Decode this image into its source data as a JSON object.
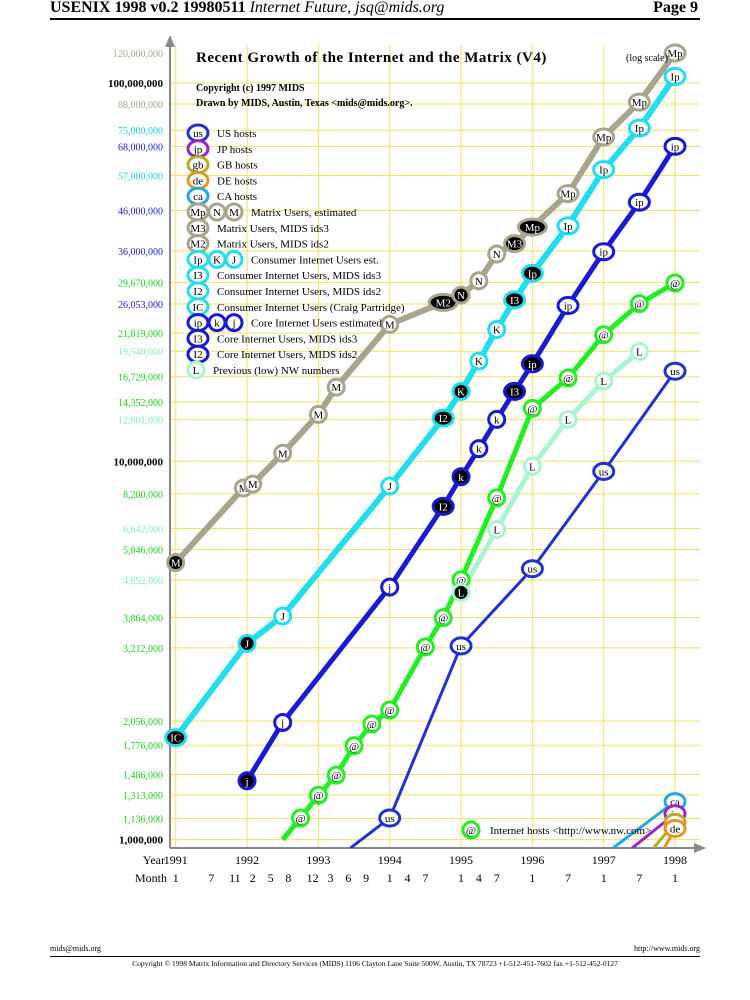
{
  "header": {
    "left_bold": "USENIX 1998 v0.2 19980511",
    "left_italic": "Internet Future, jsq@mids.org",
    "right": "Page 9"
  },
  "footer": {
    "left": "mids@mids.org",
    "right": "http://www.mids.org",
    "copyright": "Copyright © 1998 Matrix Information and Directory Services (MIDS) 1106 Clayton Lane Suite 500W, Austin, TX 78723 +1-512-451-7602 fax +1-512-452-0127"
  },
  "colors": {
    "matrix": "#a8a58c",
    "ip": "#22ddee",
    "core": "#1a1ad2",
    "hosts": "#22ee22",
    "us": "#2233cc",
    "low": "#a8f5d0",
    "jp": "#9922cc",
    "gb": "#bbaa22",
    "de": "#dd9922",
    "ca": "#22aadd",
    "grid": "#f2e060",
    "axis": "#888888"
  },
  "chart_data": {
    "type": "line",
    "title": "Recent Growth of the Internet and the Matrix (V4)",
    "title_suffix": "(log scale)",
    "subtitle1": "Copyright (c) 1997 MIDS",
    "subtitle2": "Drawn by MIDS, Austin, Texas <mids@mids.org>.",
    "yscale": "log",
    "ylim": [
      950000,
      126000000
    ],
    "xlim": [
      1990.92,
      1998.35
    ],
    "xlabel_year": "Year",
    "xlabel_month": "Month",
    "year_ticks": [
      {
        "x": 1991,
        "label": "1991"
      },
      {
        "x": 1992,
        "label": "1992"
      },
      {
        "x": 1993,
        "label": "1993"
      },
      {
        "x": 1994,
        "label": "1994"
      },
      {
        "x": 1995,
        "label": "1995"
      },
      {
        "x": 1996,
        "label": "1996"
      },
      {
        "x": 1997,
        "label": "1997"
      },
      {
        "x": 1998,
        "label": "1998"
      }
    ],
    "month_ticks": [
      {
        "x": 1991.0,
        "label": "1"
      },
      {
        "x": 1991.5,
        "label": "7"
      },
      {
        "x": 1991.83,
        "label": "11"
      },
      {
        "x": 1992.08,
        "label": "2"
      },
      {
        "x": 1992.33,
        "label": "5"
      },
      {
        "x": 1992.58,
        "label": "8"
      },
      {
        "x": 1992.92,
        "label": "12"
      },
      {
        "x": 1993.17,
        "label": "3"
      },
      {
        "x": 1993.42,
        "label": "6"
      },
      {
        "x": 1993.67,
        "label": "9"
      },
      {
        "x": 1994.0,
        "label": "1"
      },
      {
        "x": 1994.25,
        "label": "4"
      },
      {
        "x": 1994.5,
        "label": "7"
      },
      {
        "x": 1995.0,
        "label": "1"
      },
      {
        "x": 1995.25,
        "label": "4"
      },
      {
        "x": 1995.5,
        "label": "7"
      },
      {
        "x": 1996.0,
        "label": "1"
      },
      {
        "x": 1996.5,
        "label": "7"
      },
      {
        "x": 1997.0,
        "label": "1"
      },
      {
        "x": 1997.5,
        "label": "7"
      },
      {
        "x": 1998.0,
        "label": "1"
      }
    ],
    "y_ticks": [
      {
        "v": 120000000,
        "label": "120,000,000",
        "color": "#a8a58c",
        "bold": false,
        "line": false
      },
      {
        "v": 100000000,
        "label": "100,000,000",
        "color": "#000000",
        "bold": true,
        "line": true
      },
      {
        "v": 88000000,
        "label": "88,000,000",
        "color": "#a8a58c",
        "bold": false,
        "line": true
      },
      {
        "v": 75000000,
        "label": "75,000,000",
        "color": "#22ccdd",
        "bold": false,
        "line": true
      },
      {
        "v": 68000000,
        "label": "68,000,000",
        "color": "#1a1ad2",
        "bold": false,
        "line": true
      },
      {
        "v": 57000000,
        "label": "57,000,000",
        "color": "#22ccdd",
        "bold": false,
        "line": true
      },
      {
        "v": 46000000,
        "label": "46,000,000",
        "color": "#1a1ad2",
        "bold": false,
        "line": true
      },
      {
        "v": 36000000,
        "label": "36,000,000",
        "color": "#1a1ad2",
        "bold": false,
        "line": true
      },
      {
        "v": 29670000,
        "label": "29,670,000",
        "color": "#22cc22",
        "bold": false,
        "line": true
      },
      {
        "v": 26053000,
        "label": "26,053,000",
        "color": "#1a1ad2",
        "bold": false,
        "line": true
      },
      {
        "v": 21819000,
        "label": "21,819,000",
        "color": "#22cc22",
        "bold": false,
        "line": true
      },
      {
        "v": 19540000,
        "label": "19,540,000",
        "color": "#88eebb",
        "bold": false,
        "line": true
      },
      {
        "v": 16729000,
        "label": "16,729,000",
        "color": "#22cc22",
        "bold": false,
        "line": true
      },
      {
        "v": 14352000,
        "label": "14,352,000",
        "color": "#22cc22",
        "bold": false,
        "line": true
      },
      {
        "v": 12881000,
        "label": "12,881,000",
        "color": "#88eebb",
        "bold": false,
        "line": true
      },
      {
        "v": 10000000,
        "label": "10,000,000",
        "color": "#000000",
        "bold": true,
        "line": true
      },
      {
        "v": 8200000,
        "label": "8,200,000",
        "color": "#22cc22",
        "bold": false,
        "line": true
      },
      {
        "v": 6642000,
        "label": "6,642,000",
        "color": "#88eebb",
        "bold": false,
        "line": true
      },
      {
        "v": 5846000,
        "label": "5,846,000",
        "color": "#22cc22",
        "bold": false,
        "line": true
      },
      {
        "v": 4852000,
        "label": "4,852,000",
        "color": "#88eebb",
        "bold": false,
        "line": true
      },
      {
        "v": 3864000,
        "label": "3,864,000",
        "color": "#22cc22",
        "bold": false,
        "line": true
      },
      {
        "v": 3212000,
        "label": "3,212,000",
        "color": "#22cc22",
        "bold": false,
        "line": true
      },
      {
        "v": 2056000,
        "label": "2,056,000",
        "color": "#22cc22",
        "bold": false,
        "line": true
      },
      {
        "v": 1776000,
        "label": "1,776,000",
        "color": "#22cc22",
        "bold": false,
        "line": true
      },
      {
        "v": 1486000,
        "label": "1,486,000",
        "color": "#22cc22",
        "bold": false,
        "line": true
      },
      {
        "v": 1313000,
        "label": "1,313,000",
        "color": "#22cc22",
        "bold": false,
        "line": true
      },
      {
        "v": 1136000,
        "label": "1,136,000",
        "color": "#22cc22",
        "bold": false,
        "line": true
      },
      {
        "v": 1000000,
        "label": "1,000,000",
        "color": "#000000",
        "bold": true,
        "line": true
      }
    ],
    "series": [
      {
        "name": "Matrix Users",
        "key": "matrix",
        "lw": 6,
        "points": [
          {
            "x": 1991.0,
            "y": 5400000,
            "m": "M",
            "f": "dark"
          },
          {
            "x": 1991.95,
            "y": 8500000,
            "m": "M"
          },
          {
            "x": 1992.08,
            "y": 8700000,
            "m": "M"
          },
          {
            "x": 1992.5,
            "y": 10500000,
            "m": "M"
          },
          {
            "x": 1993.0,
            "y": 13300000,
            "m": "M"
          },
          {
            "x": 1993.25,
            "y": 15700000,
            "m": "M"
          },
          {
            "x": 1994.0,
            "y": 23000000,
            "m": "M"
          },
          {
            "x": 1994.75,
            "y": 26300000,
            "m": "M2",
            "f": "dark",
            "wide": true
          },
          {
            "x": 1995.0,
            "y": 27500000,
            "m": "N",
            "f": "dark"
          },
          {
            "x": 1995.25,
            "y": 30000000,
            "m": "N"
          },
          {
            "x": 1995.5,
            "y": 35300000,
            "m": "N"
          },
          {
            "x": 1995.75,
            "y": 37600000,
            "m": "M3",
            "f": "dark"
          },
          {
            "x": 1996.0,
            "y": 41600000,
            "m": "Mp",
            "f": "dark",
            "wide": true
          },
          {
            "x": 1996.5,
            "y": 51000000,
            "m": "Mp"
          },
          {
            "x": 1997.0,
            "y": 72000000,
            "m": "Mp"
          },
          {
            "x": 1997.5,
            "y": 89000000,
            "m": "Mp"
          },
          {
            "x": 1998.0,
            "y": 120000000,
            "m": "Mp"
          }
        ]
      },
      {
        "name": "Consumer Internet Users",
        "key": "ip",
        "lw": 6,
        "points": [
          {
            "x": 1991.0,
            "y": 1860000,
            "m": "IC",
            "f": "dark"
          },
          {
            "x": 1992.0,
            "y": 3300000,
            "m": "J",
            "f": "dark"
          },
          {
            "x": 1992.5,
            "y": 3900000,
            "m": "J"
          },
          {
            "x": 1994.0,
            "y": 8600000,
            "m": "J"
          },
          {
            "x": 1994.75,
            "y": 13000000,
            "m": "I2",
            "f": "dark"
          },
          {
            "x": 1995.0,
            "y": 15300000,
            "m": "K",
            "f": "dark"
          },
          {
            "x": 1995.25,
            "y": 18400000,
            "m": "K"
          },
          {
            "x": 1995.5,
            "y": 22300000,
            "m": "K"
          },
          {
            "x": 1995.75,
            "y": 26700000,
            "m": "I3",
            "f": "dark"
          },
          {
            "x": 1996.0,
            "y": 31400000,
            "m": "Ip",
            "f": "dark"
          },
          {
            "x": 1996.5,
            "y": 41900000,
            "m": "Ip"
          },
          {
            "x": 1997.0,
            "y": 59000000,
            "m": "Ip"
          },
          {
            "x": 1997.5,
            "y": 76000000,
            "m": "Ip"
          },
          {
            "x": 1998.0,
            "y": 104000000,
            "m": "Ip"
          }
        ]
      },
      {
        "name": "Core Internet Users",
        "key": "core",
        "lw": 5,
        "points": [
          {
            "x": 1992.0,
            "y": 1430000,
            "m": "j",
            "f": "dark"
          },
          {
            "x": 1992.5,
            "y": 2040000,
            "m": "j"
          },
          {
            "x": 1994.0,
            "y": 4650000,
            "m": "j"
          },
          {
            "x": 1994.75,
            "y": 7600000,
            "m": "I2",
            "f": "dark"
          },
          {
            "x": 1995.0,
            "y": 9100000,
            "m": "k",
            "f": "dark"
          },
          {
            "x": 1995.25,
            "y": 10800000,
            "m": "k"
          },
          {
            "x": 1995.5,
            "y": 12900000,
            "m": "k"
          },
          {
            "x": 1995.75,
            "y": 15300000,
            "m": "I3",
            "f": "dark"
          },
          {
            "x": 1996.0,
            "y": 18100000,
            "m": "ip",
            "f": "dark"
          },
          {
            "x": 1996.5,
            "y": 25800000,
            "m": "ip"
          },
          {
            "x": 1997.0,
            "y": 35800000,
            "m": "ip"
          },
          {
            "x": 1997.5,
            "y": 48400000,
            "m": "ip"
          },
          {
            "x": 1998.0,
            "y": 68000000,
            "m": "ip"
          }
        ]
      },
      {
        "name": "Internet hosts",
        "key": "hosts",
        "lw": 5,
        "points": [
          {
            "x": 1992.5,
            "y": 1000000,
            "m": null
          },
          {
            "x": 1992.75,
            "y": 1140000,
            "m": "@"
          },
          {
            "x": 1993.0,
            "y": 1310000,
            "m": "@"
          },
          {
            "x": 1993.25,
            "y": 1480000,
            "m": "@"
          },
          {
            "x": 1993.5,
            "y": 1770000,
            "m": "@"
          },
          {
            "x": 1993.75,
            "y": 2020000,
            "m": "@"
          },
          {
            "x": 1994.0,
            "y": 2200000,
            "m": "@"
          },
          {
            "x": 1994.5,
            "y": 3230000,
            "m": "@"
          },
          {
            "x": 1994.75,
            "y": 3860000,
            "m": "@"
          },
          {
            "x": 1995.0,
            "y": 4860000,
            "m": "@"
          },
          {
            "x": 1995.5,
            "y": 8000000,
            "m": "@"
          },
          {
            "x": 1996.0,
            "y": 13800000,
            "m": "@"
          },
          {
            "x": 1996.5,
            "y": 16600000,
            "m": "@"
          },
          {
            "x": 1997.0,
            "y": 21600000,
            "m": "@"
          },
          {
            "x": 1997.5,
            "y": 26100000,
            "m": "@"
          },
          {
            "x": 1998.0,
            "y": 29600000,
            "m": "@"
          }
        ]
      },
      {
        "name": "Previous (low) NW numbers",
        "key": "low",
        "lw": 5,
        "points": [
          {
            "x": 1995.0,
            "y": 4500000,
            "m": "L",
            "f": "dark"
          },
          {
            "x": 1995.5,
            "y": 6600000,
            "m": "L"
          },
          {
            "x": 1996.0,
            "y": 9700000,
            "m": "L"
          },
          {
            "x": 1996.5,
            "y": 12900000,
            "m": "L"
          },
          {
            "x": 1997.0,
            "y": 16300000,
            "m": "L"
          },
          {
            "x": 1997.5,
            "y": 19500000,
            "m": "L"
          }
        ]
      },
      {
        "name": "US hosts",
        "key": "us",
        "lw": 3,
        "points": [
          {
            "x": 1993.45,
            "y": 950000,
            "m": null
          },
          {
            "x": 1994.0,
            "y": 1140000,
            "m": "us"
          },
          {
            "x": 1995.0,
            "y": 3250000,
            "m": "us"
          },
          {
            "x": 1996.0,
            "y": 5200000,
            "m": "us"
          },
          {
            "x": 1997.0,
            "y": 9400000,
            "m": "us"
          },
          {
            "x": 1998.0,
            "y": 17300000,
            "m": "us"
          }
        ]
      },
      {
        "name": "CA hosts",
        "key": "ca",
        "lw": 3,
        "points": [
          {
            "x": 1997.13,
            "y": 950000,
            "m": null
          },
          {
            "x": 1998.0,
            "y": 1260000,
            "m": "ca"
          }
        ]
      },
      {
        "name": "JP hosts",
        "key": "jp",
        "lw": 3,
        "points": [
          {
            "x": 1997.4,
            "y": 950000,
            "m": null
          },
          {
            "x": 1998.0,
            "y": 1170000,
            "m": "jp"
          }
        ]
      },
      {
        "name": "GB hosts",
        "key": "gb",
        "lw": 3,
        "points": [
          {
            "x": 1997.7,
            "y": 950000,
            "m": null
          },
          {
            "x": 1998.0,
            "y": 1110000,
            "m": "gb"
          }
        ]
      },
      {
        "name": "DE hosts",
        "key": "de",
        "lw": 3,
        "points": [
          {
            "x": 1997.85,
            "y": 950000,
            "m": null
          },
          {
            "x": 1998.0,
            "y": 1070000,
            "m": "de"
          }
        ]
      }
    ],
    "legend": [
      {
        "syms": [
          "us"
        ],
        "key": "us",
        "text": "US hosts"
      },
      {
        "syms": [
          "jp"
        ],
        "key": "jp",
        "text": "JP hosts"
      },
      {
        "syms": [
          "gb"
        ],
        "key": "gb",
        "text": "GB hosts"
      },
      {
        "syms": [
          "de"
        ],
        "key": "de",
        "text": "DE hosts"
      },
      {
        "syms": [
          "ca"
        ],
        "key": "ca",
        "text": "CA hosts"
      },
      {
        "syms": [
          "Mp",
          "N",
          "M"
        ],
        "key": "matrix",
        "text": "Matrix Users, estimated"
      },
      {
        "syms": [
          "M3"
        ],
        "key": "matrix",
        "text": "Matrix Users, MIDS ids3"
      },
      {
        "syms": [
          "M2"
        ],
        "key": "matrix",
        "text": "Matrix Users, MIDS ids2"
      },
      {
        "syms": [
          "Ip",
          "K",
          "J"
        ],
        "key": "ip",
        "text": "Consumer Internet Users est."
      },
      {
        "syms": [
          "I3"
        ],
        "key": "ip",
        "text": "Consumer Internet Users, MIDS ids3"
      },
      {
        "syms": [
          "I2"
        ],
        "key": "ip",
        "text": "Consumer Internet Users, MIDS ids2"
      },
      {
        "syms": [
          "IC"
        ],
        "key": "ip",
        "text": "Consumer Internet Users (Craig Partridge)"
      },
      {
        "syms": [
          "ip",
          "k",
          "j"
        ],
        "key": "core",
        "text": "Core Internet Users estimated"
      },
      {
        "syms": [
          "I3"
        ],
        "key": "core",
        "text": "Core Internet Users, MIDS ids3"
      },
      {
        "syms": [
          "I2"
        ],
        "key": "core",
        "text": "Core Internet Users, MIDS ids2"
      },
      {
        "syms": [
          "L"
        ],
        "key": "low",
        "text": "Previous (low) NW numbers"
      }
    ],
    "bottom_legend": {
      "sym": "@",
      "key": "hosts",
      "text": "Internet hosts <http://www.nw.com>"
    }
  }
}
